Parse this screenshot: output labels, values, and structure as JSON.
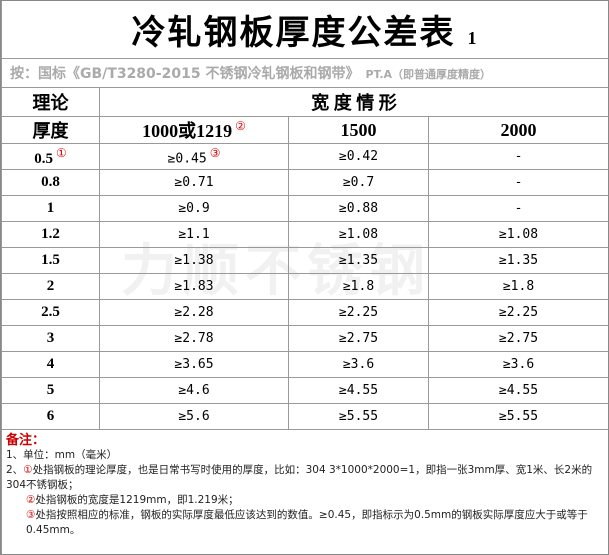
{
  "title": {
    "text": "冷轧钢板厚度公差表",
    "suffix": "1"
  },
  "subtitle": {
    "text": "按：国标《GB/T3280-2015 不锈钢冷轧钢板和钢带》",
    "note": "PT.A（即普通厚度精度）"
  },
  "watermark": "力顺不锈钢",
  "table": {
    "header": {
      "thickness": [
        "理论",
        "厚度"
      ],
      "width": "宽 度 情 形",
      "columns": [
        "1000或1219",
        "1500",
        "2000"
      ]
    },
    "markers": {
      "thickness": "①",
      "width": "②",
      "tolerance": "③"
    },
    "rows": [
      [
        "0.5",
        "≥0.45",
        "≥0.42",
        "-"
      ],
      [
        "0.8",
        "≥0.71",
        "≥0.7",
        "-"
      ],
      [
        "1",
        "≥0.9",
        "≥0.88",
        "-"
      ],
      [
        "1.2",
        "≥1.1",
        "≥1.08",
        "≥1.08"
      ],
      [
        "1.5",
        "≥1.38",
        "≥1.35",
        "≥1.35"
      ],
      [
        "2",
        "≥1.83",
        "≥1.8",
        "≥1.8"
      ],
      [
        "2.5",
        "≥2.28",
        "≥2.25",
        "≥2.25"
      ],
      [
        "3",
        "≥2.78",
        "≥2.75",
        "≥2.75"
      ],
      [
        "4",
        "≥3.65",
        "≥3.6",
        "≥3.6"
      ],
      [
        "5",
        "≥4.6",
        "≥4.55",
        "≥4.55"
      ],
      [
        "6",
        "≥5.6",
        "≥5.55",
        "≥5.55"
      ]
    ]
  },
  "notes": {
    "title": "备注：",
    "items": [
      {
        "prefix": "1、单位：mm（毫米）",
        "marker": "",
        "text": ""
      },
      {
        "prefix": "2、",
        "marker": "①",
        "text": "处指钢板的理论厚度，也是日常书写时使用的厚度，比如：304 3*1000*2000=1，即指一张3mm厚、宽1米、长2米的304不锈钢板；"
      },
      {
        "prefix": "",
        "marker": "②",
        "text": "处指钢板的宽度是1219mm，即1.219米；"
      },
      {
        "prefix": "",
        "marker": "③",
        "text": "处指按照相应的标准，钢板的实际厚度最低应该达到的数值。≥0.45，即指标示为0.5mm的钢板实际厚度应大于或等于0.45mm。"
      }
    ]
  }
}
